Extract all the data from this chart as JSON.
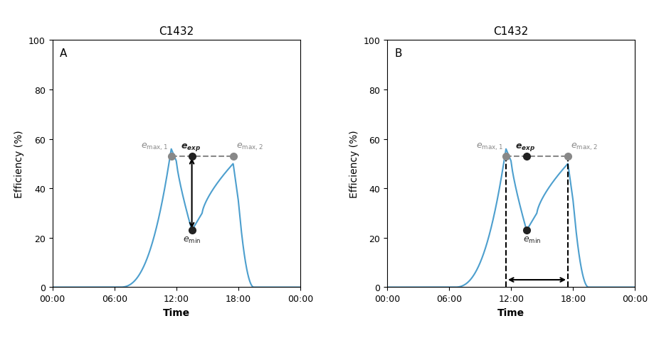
{
  "title": "C1432",
  "xlabel": "Time",
  "ylabel": "Efficiency (%)",
  "ylim": [
    0,
    100
  ],
  "yticks": [
    0,
    20,
    40,
    60,
    80,
    100
  ],
  "xtick_labels": [
    "00:00",
    "06:00",
    "12:00",
    "18:00",
    "00:00"
  ],
  "curve_color": "#4d9fce",
  "curve_lw": 1.5,
  "panel_A_label": "A",
  "panel_B_label": "B",
  "e_max1": 56,
  "e_max2": 50,
  "e_exp": 53,
  "e_min": 23,
  "t_max1": 11.5,
  "t_max2": 17.5,
  "t_exp": 13.5,
  "t_min": 13.5,
  "annotation_color_gray": "#888888",
  "annotation_color_black": "#222222",
  "dot_color_black": "#222222",
  "dot_color_gray": "#888888",
  "dashed_line_color": "#888888",
  "formula_text_color": "#222222"
}
